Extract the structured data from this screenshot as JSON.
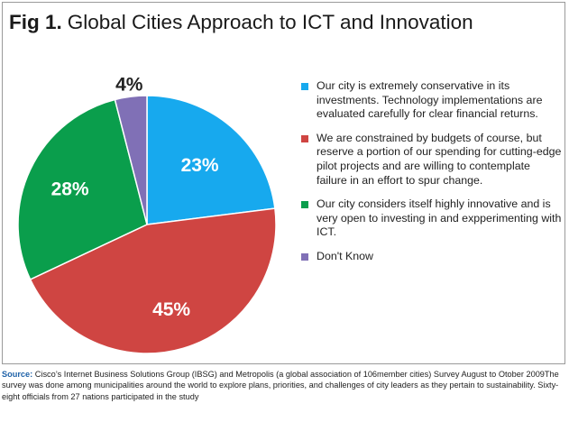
{
  "title": {
    "fig": "Fig 1.",
    "text": "Global Cities Approach to ICT and Innovation"
  },
  "chart_data": {
    "type": "pie",
    "title": "Global Cities Approach to ICT and Innovation",
    "slices": [
      {
        "label": "Our city is extremely conservative in its investments. Technology implementations are evaluated carefully for clear financial returns.",
        "value": 23,
        "display": "23%",
        "color": "#17a9ee"
      },
      {
        "label": "We are constrained by budgets of course, but reserve a portion of our spending for cutting-edge pilot projects and are willing to contemplate failure in an effort to spur change.",
        "value": 45,
        "display": "45%",
        "color": "#cf4542"
      },
      {
        "label": "Our city considers itself highly innovative and is very open to investing in and expperimenting with ICT.",
        "value": 28,
        "display": "28%",
        "color": "#0a9e4c"
      },
      {
        "label": "Don't Know",
        "value": 4,
        "display": "4%",
        "color": "#8070b6"
      }
    ],
    "legend_position": "right"
  },
  "legend": [
    {
      "text": "Our city is extremely conservative in its investments. Technology implementations are evaluated carefully for clear financial returns.",
      "color": "#17a9ee"
    },
    {
      "text": "We are constrained by budgets of course, but reserve a portion of our spending for cutting-edge pilot projects and are willing to contemplate failure in an effort to spur change.",
      "color": "#cf4542"
    },
    {
      "text": "Our city considers itself highly innovative and is very open to investing in and expperimenting with ICT.",
      "color": "#0a9e4c"
    },
    {
      "text": "Don't Know",
      "color": "#8070b6"
    }
  ],
  "source": {
    "lead": "Source:",
    "text": " Cisco’s Internet Business Solutions Group (IBSG) and Metropolis (a global association of 106member cities) Survey August to Otober 2009The survey was done among municipalities around the world to explore plans, priorities, and challenges of city leaders as they pertain to sustainability. Sixty-eight officials from 27 nations participated in the study"
  }
}
